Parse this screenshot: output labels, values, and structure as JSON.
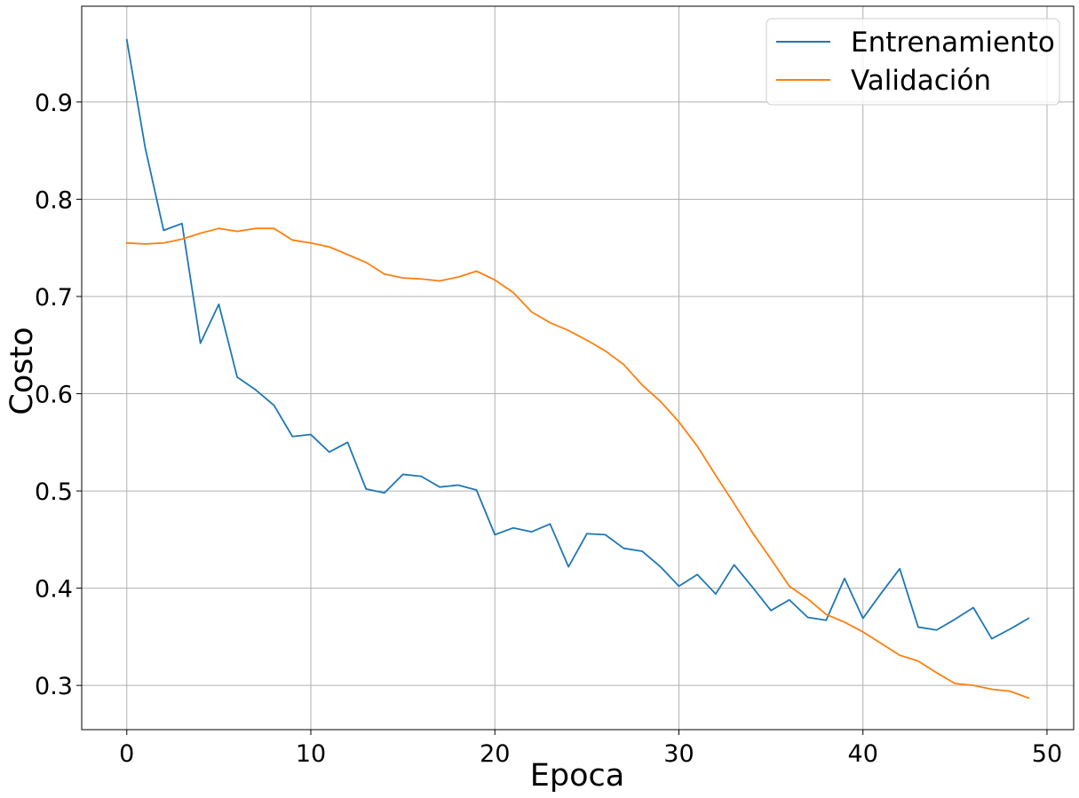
{
  "chart_data": {
    "type": "line",
    "xlabel": "Epoca",
    "ylabel": "Costo",
    "xlim": [
      -2.45,
      51.45
    ],
    "ylim": [
      0.2545,
      0.9985
    ],
    "xticks": [
      0,
      10,
      20,
      30,
      40,
      50
    ],
    "yticks": [
      0.3,
      0.4,
      0.5,
      0.6,
      0.7,
      0.8,
      0.9
    ],
    "grid": true,
    "legend_position": "top-right",
    "x": [
      0,
      1,
      2,
      3,
      4,
      5,
      6,
      7,
      8,
      9,
      10,
      11,
      12,
      13,
      14,
      15,
      16,
      17,
      18,
      19,
      20,
      21,
      22,
      23,
      24,
      25,
      26,
      27,
      28,
      29,
      30,
      31,
      32,
      33,
      34,
      35,
      36,
      37,
      38,
      39,
      40,
      41,
      42,
      43,
      44,
      45,
      46,
      47,
      48,
      49
    ],
    "series": [
      {
        "name": "Entrenamiento",
        "color": "#1f77b4",
        "values": [
          0.964,
          0.853,
          0.768,
          0.775,
          0.652,
          0.692,
          0.617,
          0.604,
          0.588,
          0.556,
          0.558,
          0.54,
          0.55,
          0.502,
          0.498,
          0.517,
          0.515,
          0.504,
          0.506,
          0.501,
          0.455,
          0.462,
          0.458,
          0.466,
          0.422,
          0.456,
          0.455,
          0.441,
          0.438,
          0.422,
          0.402,
          0.414,
          0.394,
          0.424,
          0.401,
          0.377,
          0.388,
          0.37,
          0.367,
          0.41,
          0.369,
          0.395,
          0.42,
          0.36,
          0.357,
          0.368,
          0.38,
          0.348,
          0.358,
          0.369
        ]
      },
      {
        "name": "Validación",
        "color": "#ff7f0e",
        "values": [
          0.755,
          0.754,
          0.755,
          0.759,
          0.765,
          0.77,
          0.767,
          0.77,
          0.77,
          0.758,
          0.755,
          0.751,
          0.743,
          0.735,
          0.723,
          0.719,
          0.718,
          0.716,
          0.72,
          0.726,
          0.717,
          0.704,
          0.684,
          0.673,
          0.665,
          0.655,
          0.644,
          0.63,
          0.609,
          0.592,
          0.571,
          0.546,
          0.516,
          0.487,
          0.457,
          0.43,
          0.402,
          0.389,
          0.373,
          0.365,
          0.355,
          0.343,
          0.331,
          0.325,
          0.313,
          0.302,
          0.3,
          0.296,
          0.294,
          0.287
        ]
      }
    ]
  }
}
